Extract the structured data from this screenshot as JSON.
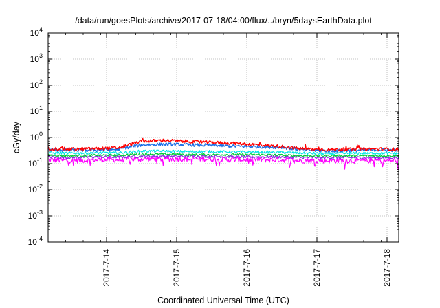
{
  "chart_data": {
    "type": "line",
    "title": "/data/run/goesPlots/archive/2017-07-18/04:00/flux/../bryn/5daysEarthData.plot",
    "xlabel": "Coordinated Universal Time (UTC)",
    "ylabel": "cGy/day",
    "yscale": "log",
    "ylim": [
      0.0001,
      10000
    ],
    "xlim": [
      "2017-07-13 04:00",
      "2017-07-18 04:00"
    ],
    "grid": true,
    "legend": "none",
    "y_ticks": [
      {
        "value": 0.0001,
        "base": "10",
        "exp": "-4"
      },
      {
        "value": 0.001,
        "base": "10",
        "exp": "-3"
      },
      {
        "value": 0.01,
        "base": "10",
        "exp": "-2"
      },
      {
        "value": 0.1,
        "base": "10",
        "exp": "-1"
      },
      {
        "value": 1,
        "base": "10",
        "exp": "0"
      },
      {
        "value": 10,
        "base": "10",
        "exp": "1"
      },
      {
        "value": 100,
        "base": "10",
        "exp": "2"
      },
      {
        "value": 1000,
        "base": "10",
        "exp": "3"
      },
      {
        "value": 10000,
        "base": "10",
        "exp": "4"
      }
    ],
    "x_ticks": [
      {
        "value": "2017-07-14 00:00",
        "label": "2017-7-14"
      },
      {
        "value": "2017-07-15 00:00",
        "label": "2017-7-15"
      },
      {
        "value": "2017-07-16 00:00",
        "label": "2017-7-16"
      },
      {
        "value": "2017-07-17 00:00",
        "label": "2017-7-17"
      },
      {
        "value": "2017-07-18 00:00",
        "label": "2017-7-18"
      }
    ],
    "series": [
      {
        "color": "#ff0000",
        "x": [
          "2017-07-13 04:00",
          "2017-07-13 12:00",
          "2017-07-13 20:00",
          "2017-07-14 04:00",
          "2017-07-14 12:00",
          "2017-07-14 20:00",
          "2017-07-15 04:00",
          "2017-07-15 12:00",
          "2017-07-15 20:00",
          "2017-07-16 04:00",
          "2017-07-16 12:00",
          "2017-07-16 20:00",
          "2017-07-17 04:00",
          "2017-07-17 12:00",
          "2017-07-17 20:00",
          "2017-07-18 04:00"
        ],
        "values": [
          0.38,
          0.36,
          0.37,
          0.4,
          0.72,
          0.78,
          0.7,
          0.65,
          0.6,
          0.52,
          0.45,
          0.36,
          0.34,
          0.35,
          0.36,
          0.36
        ]
      },
      {
        "color": "#1a6fe6",
        "x": [
          "2017-07-13 04:00",
          "2017-07-13 12:00",
          "2017-07-13 20:00",
          "2017-07-14 04:00",
          "2017-07-14 12:00",
          "2017-07-14 20:00",
          "2017-07-15 04:00",
          "2017-07-15 12:00",
          "2017-07-15 20:00",
          "2017-07-16 04:00",
          "2017-07-16 12:00",
          "2017-07-16 20:00",
          "2017-07-17 04:00",
          "2017-07-17 12:00",
          "2017-07-17 20:00",
          "2017-07-18 04:00"
        ],
        "values": [
          0.34,
          0.32,
          0.33,
          0.35,
          0.52,
          0.55,
          0.52,
          0.5,
          0.46,
          0.44,
          0.42,
          0.33,
          0.31,
          0.32,
          0.33,
          0.33
        ]
      },
      {
        "color": "#00e5e5",
        "x": [
          "2017-07-13 04:00",
          "2017-07-13 12:00",
          "2017-07-13 20:00",
          "2017-07-14 04:00",
          "2017-07-14 12:00",
          "2017-07-14 20:00",
          "2017-07-15 04:00",
          "2017-07-15 12:00",
          "2017-07-15 20:00",
          "2017-07-16 04:00",
          "2017-07-16 12:00",
          "2017-07-16 20:00",
          "2017-07-17 04:00",
          "2017-07-17 12:00",
          "2017-07-17 20:00",
          "2017-07-18 04:00"
        ],
        "values": [
          0.26,
          0.25,
          0.26,
          0.26,
          0.3,
          0.3,
          0.29,
          0.29,
          0.28,
          0.28,
          0.27,
          0.25,
          0.24,
          0.25,
          0.25,
          0.25
        ]
      },
      {
        "color": "#00cc33",
        "x": [
          "2017-07-13 04:00",
          "2017-07-13 12:00",
          "2017-07-13 20:00",
          "2017-07-14 04:00",
          "2017-07-14 12:00",
          "2017-07-14 20:00",
          "2017-07-15 04:00",
          "2017-07-15 12:00",
          "2017-07-15 20:00",
          "2017-07-16 04:00",
          "2017-07-16 12:00",
          "2017-07-16 20:00",
          "2017-07-17 04:00",
          "2017-07-17 12:00",
          "2017-07-17 20:00",
          "2017-07-18 04:00"
        ],
        "values": [
          0.21,
          0.2,
          0.21,
          0.21,
          0.23,
          0.23,
          0.22,
          0.22,
          0.22,
          0.22,
          0.21,
          0.2,
          0.2,
          0.2,
          0.2,
          0.2
        ]
      },
      {
        "color": "#8a2be2",
        "x": [
          "2017-07-13 04:00",
          "2017-07-13 12:00",
          "2017-07-13 20:00",
          "2017-07-14 04:00",
          "2017-07-14 12:00",
          "2017-07-14 20:00",
          "2017-07-15 04:00",
          "2017-07-15 12:00",
          "2017-07-15 20:00",
          "2017-07-16 04:00",
          "2017-07-16 12:00",
          "2017-07-16 20:00",
          "2017-07-17 04:00",
          "2017-07-17 12:00",
          "2017-07-17 20:00",
          "2017-07-18 04:00"
        ],
        "values": [
          0.18,
          0.17,
          0.18,
          0.18,
          0.19,
          0.19,
          0.19,
          0.19,
          0.18,
          0.18,
          0.18,
          0.17,
          0.17,
          0.17,
          0.17,
          0.17
        ]
      },
      {
        "color": "#ff00ff",
        "x": [
          "2017-07-13 04:00",
          "2017-07-13 12:00",
          "2017-07-13 20:00",
          "2017-07-14 04:00",
          "2017-07-14 12:00",
          "2017-07-14 20:00",
          "2017-07-15 04:00",
          "2017-07-15 12:00",
          "2017-07-15 20:00",
          "2017-07-16 04:00",
          "2017-07-16 12:00",
          "2017-07-16 20:00",
          "2017-07-17 04:00",
          "2017-07-17 12:00",
          "2017-07-17 20:00",
          "2017-07-18 04:00"
        ],
        "values": [
          0.14,
          0.13,
          0.14,
          0.14,
          0.15,
          0.15,
          0.15,
          0.15,
          0.14,
          0.14,
          0.14,
          0.13,
          0.13,
          0.13,
          0.13,
          0.13
        ]
      }
    ]
  }
}
